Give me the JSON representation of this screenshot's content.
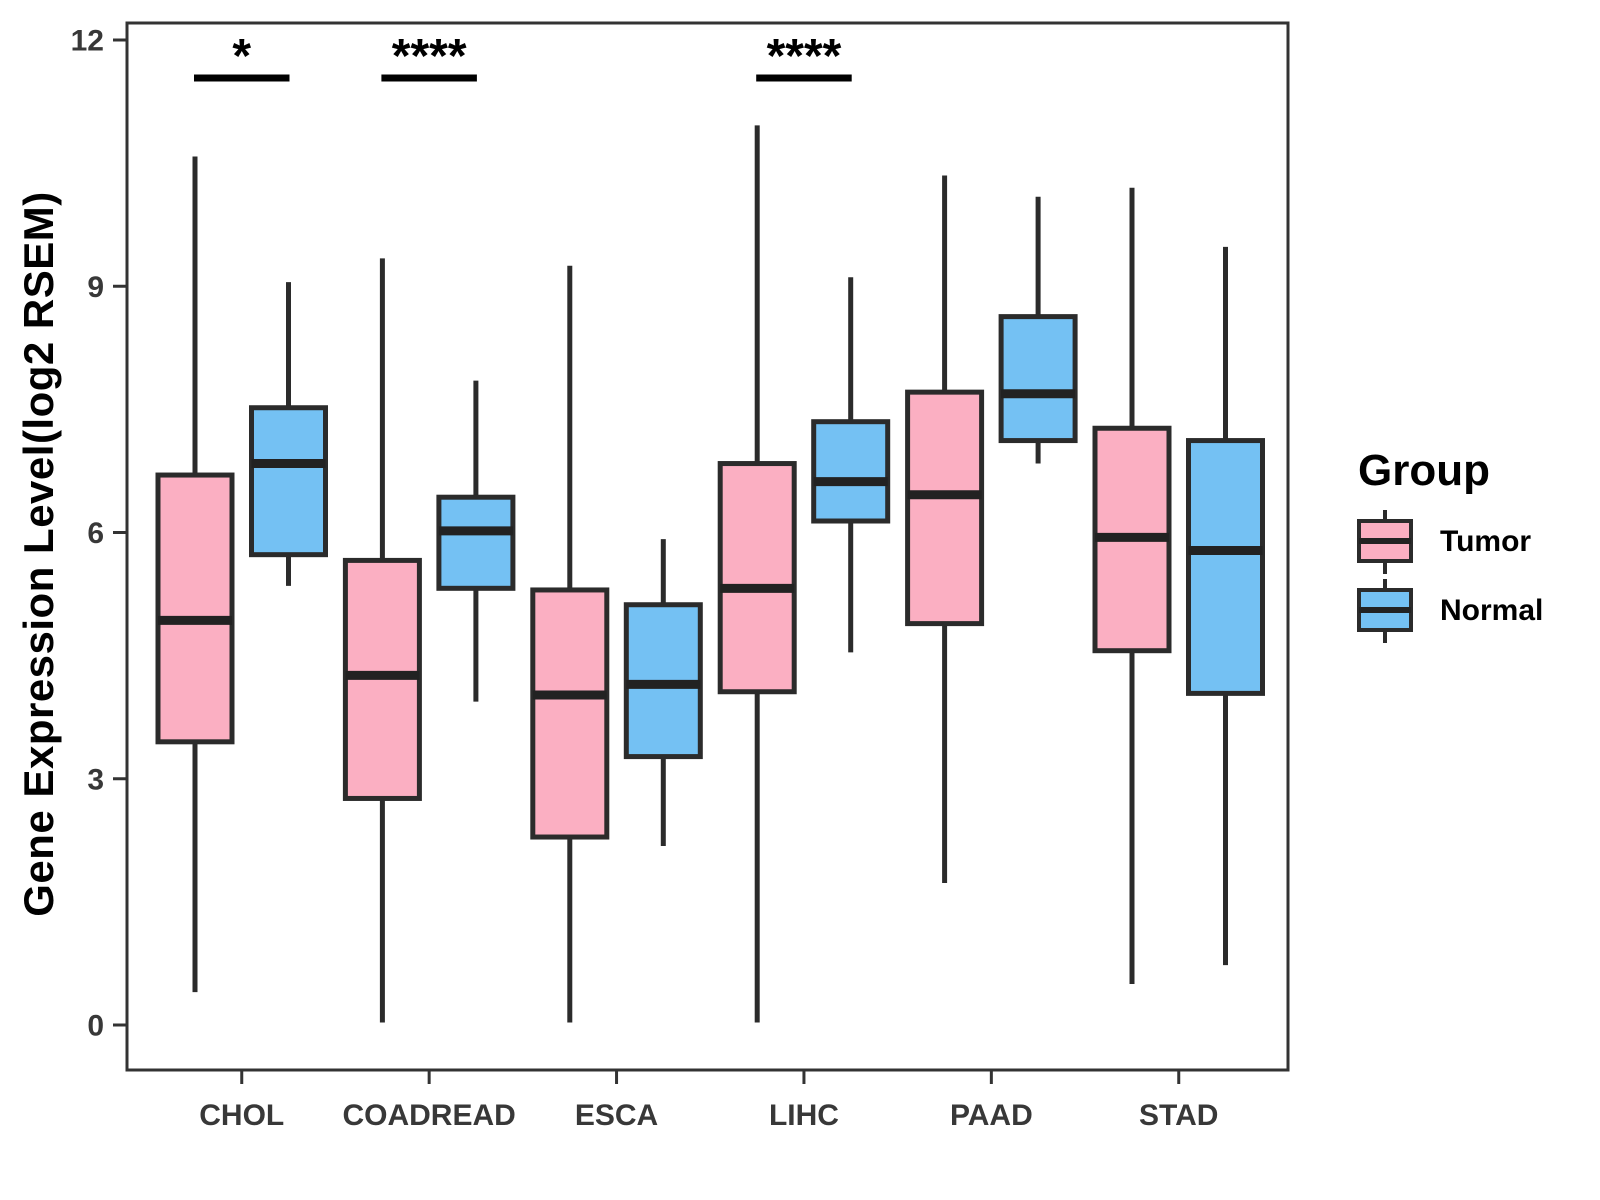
{
  "figure_title": "",
  "legend": {
    "title": "Group",
    "items": [
      {
        "label": "Tumor",
        "color": "#FBAFC2"
      },
      {
        "label": "Normal",
        "color": "#74C1F3"
      }
    ]
  },
  "colors": {
    "tumor_fill": "#FBAFC2",
    "normal_fill": "#74C1F3",
    "box_stroke": "#2b2b2b",
    "median_stroke": "#222222",
    "panel_border": "#333333",
    "axis_text": "#383838",
    "annotation": "#000000"
  },
  "chart_data": {
    "type": "box",
    "title": "",
    "xlabel": "",
    "ylabel": "Gene Expression Level(log2 RSEM)",
    "ylim": [
      0,
      12
    ],
    "yticks": [
      0,
      3,
      6,
      9,
      12
    ],
    "grid": false,
    "legend_position": "right",
    "categories": [
      "CHOL",
      "COADREAD",
      "ESCA",
      "LIHC",
      "PAAD",
      "STAD"
    ],
    "series": [
      {
        "name": "Tumor",
        "color": "#FBAFC2",
        "boxes": [
          {
            "category": "CHOL",
            "whisker_low": 0.4,
            "q1": 3.45,
            "median": 4.93,
            "q3": 6.7,
            "whisker_high": 10.58
          },
          {
            "category": "COADREAD",
            "whisker_low": 0.03,
            "q1": 2.76,
            "median": 4.26,
            "q3": 5.66,
            "whisker_high": 9.34
          },
          {
            "category": "ESCA",
            "whisker_low": 0.03,
            "q1": 2.29,
            "median": 4.02,
            "q3": 5.3,
            "whisker_high": 9.25
          },
          {
            "category": "LIHC",
            "whisker_low": 0.03,
            "q1": 4.06,
            "median": 5.32,
            "q3": 6.84,
            "whisker_high": 10.96
          },
          {
            "category": "PAAD",
            "whisker_low": 1.73,
            "q1": 4.89,
            "median": 6.46,
            "q3": 7.71,
            "whisker_high": 10.35
          },
          {
            "category": "STAD",
            "whisker_low": 0.5,
            "q1": 4.56,
            "median": 5.94,
            "q3": 7.27,
            "whisker_high": 10.2
          }
        ]
      },
      {
        "name": "Normal",
        "color": "#74C1F3",
        "boxes": [
          {
            "category": "CHOL",
            "whisker_low": 5.35,
            "q1": 5.73,
            "median": 6.84,
            "q3": 7.52,
            "whisker_high": 9.05
          },
          {
            "category": "COADREAD",
            "whisker_low": 3.94,
            "q1": 5.32,
            "median": 6.02,
            "q3": 6.43,
            "whisker_high": 7.85
          },
          {
            "category": "ESCA",
            "whisker_low": 2.18,
            "q1": 3.27,
            "median": 4.15,
            "q3": 5.12,
            "whisker_high": 5.92
          },
          {
            "category": "LIHC",
            "whisker_low": 4.54,
            "q1": 6.14,
            "median": 6.62,
            "q3": 7.35,
            "whisker_high": 9.11
          },
          {
            "category": "PAAD",
            "whisker_low": 6.84,
            "q1": 7.12,
            "median": 7.69,
            "q3": 8.63,
            "whisker_high": 10.09
          },
          {
            "category": "STAD",
            "whisker_low": 0.73,
            "q1": 4.04,
            "median": 5.78,
            "q3": 7.12,
            "whisker_high": 9.48
          }
        ]
      }
    ],
    "significance": [
      {
        "category": "CHOL",
        "label": "*"
      },
      {
        "category": "COADREAD",
        "label": "****"
      },
      {
        "category": "LIHC",
        "label": "****"
      }
    ]
  }
}
